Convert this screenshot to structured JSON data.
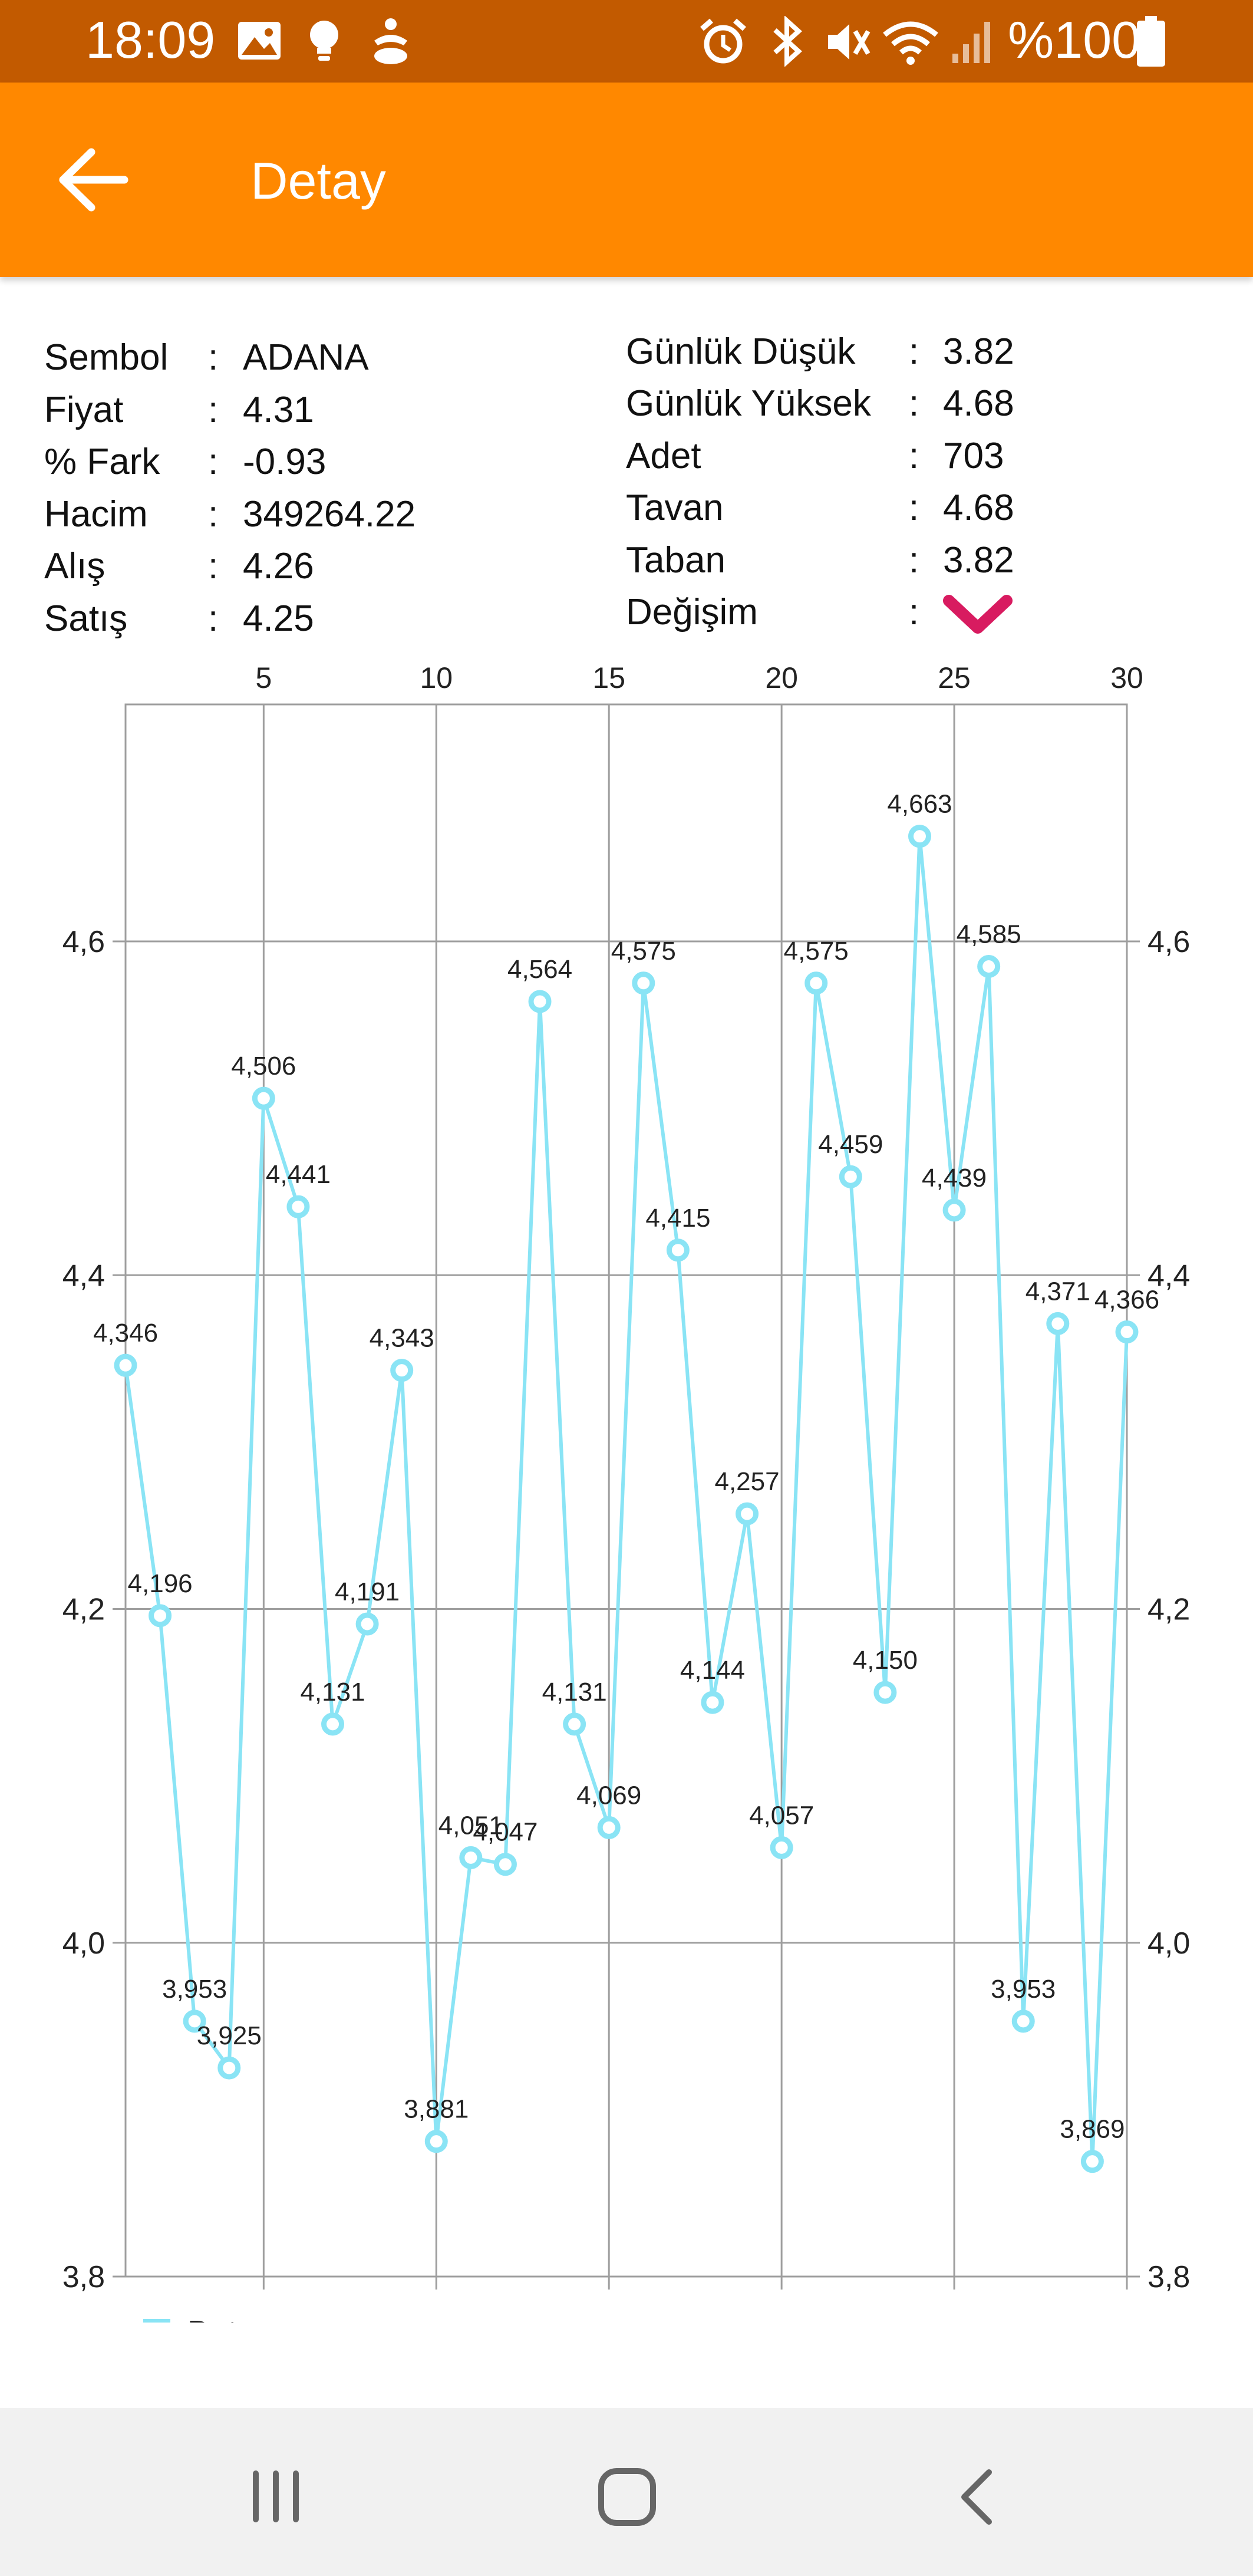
{
  "status_bar": {
    "time": "18:09",
    "battery_text": "%100",
    "icons_left": [
      "gallery-icon",
      "bulb-icon",
      "accessibility-icon"
    ],
    "icons_right": [
      "alarm-icon",
      "bluetooth-icon",
      "mute-icon",
      "wifi-icon",
      "signal-icon",
      "battery-icon"
    ]
  },
  "app_bar": {
    "title": "Detay",
    "back_icon": "arrow-left-icon",
    "color": "#ff8800"
  },
  "info_left": [
    {
      "label": "Sembol",
      "value": "ADANA"
    },
    {
      "label": "Fiyat",
      "value": "4.31"
    },
    {
      "label": "% Fark",
      "value": "-0.93"
    },
    {
      "label": "Hacim",
      "value": "349264.22"
    },
    {
      "label": "Alış",
      "value": "4.26"
    },
    {
      "label": "Satış",
      "value": "4.25"
    }
  ],
  "info_right": [
    {
      "label": "Günlük Düşük",
      "value": "3.82"
    },
    {
      "label": "Günlük Yüksek",
      "value": "4.68"
    },
    {
      "label": "Adet",
      "value": "703"
    },
    {
      "label": "Tavan",
      "value": "4.68"
    },
    {
      "label": "Taban",
      "value": "3.82"
    },
    {
      "label": "Değişim",
      "value": "",
      "icon": "chevron-down-icon",
      "icon_color": "#d81b60"
    }
  ],
  "colon": ":",
  "chart_data": {
    "type": "line",
    "x": [
      1,
      2,
      3,
      4,
      5,
      6,
      7,
      8,
      9,
      10,
      11,
      12,
      13,
      14,
      15,
      16,
      17,
      18,
      19,
      20,
      21,
      22,
      23,
      24,
      25,
      26,
      27,
      28,
      29,
      30
    ],
    "series": [
      {
        "name": "Datas",
        "color": "#8ae4f5",
        "values": [
          4.346,
          4.196,
          3.953,
          3.925,
          4.506,
          4.441,
          4.131,
          4.191,
          4.343,
          3.881,
          4.051,
          4.047,
          4.564,
          4.131,
          4.069,
          4.575,
          4.415,
          4.144,
          4.257,
          4.057,
          4.575,
          4.459,
          4.15,
          4.663,
          4.439,
          4.585,
          3.953,
          4.371,
          3.869,
          4.366
        ],
        "labels": [
          "4,346",
          "4,196",
          "3,953",
          "3,925",
          "4,506",
          "4,441",
          "4,131",
          "4,191",
          "4,343",
          "3,881",
          "4,051",
          "4,047",
          "4,564",
          "4,131",
          "4,069",
          "4,575",
          "4,415",
          "4,144",
          "4,257",
          "4,057",
          "4,575",
          "4,459",
          "4,150",
          "4,663",
          "4,439",
          "4,585",
          "3,953",
          "4,371",
          "3,869",
          "4,366"
        ]
      }
    ],
    "x_ticks": [
      5,
      10,
      15,
      20,
      25,
      30
    ],
    "x_tick_labels": [
      "5",
      "10",
      "15",
      "20",
      "25",
      "30"
    ],
    "x_axis_position": "top",
    "xlim": [
      1,
      30
    ],
    "y_ticks": [
      3.8,
      4.0,
      4.2,
      4.4,
      4.6
    ],
    "y_tick_labels": [
      "3,8",
      "4,0",
      "4,2",
      "4,4",
      "4,6"
    ],
    "ylim": [
      3.8,
      4.742
    ],
    "y_axis_labels_on": "left and right",
    "grid": true,
    "legend": {
      "entries": [
        "Datas"
      ],
      "placement": "bottom-left"
    }
  },
  "nav_bar": {
    "recent_icon": "recent-apps-icon",
    "home_icon": "home-icon",
    "back_icon": "back-chevron-icon"
  }
}
